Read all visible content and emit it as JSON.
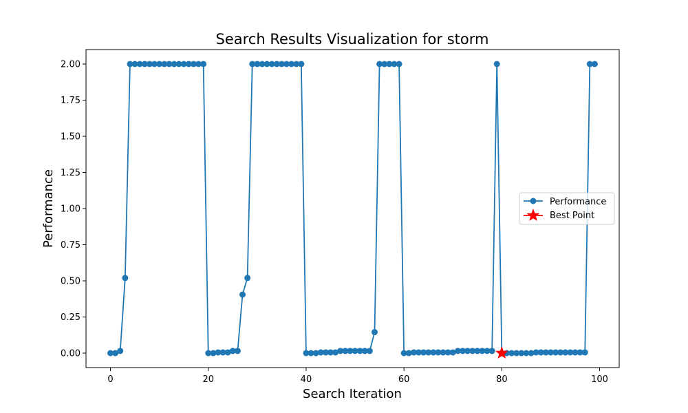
{
  "chart_data": {
    "type": "line",
    "title": "Search Results Visualization for storm",
    "xlabel": "Search Iteration",
    "ylabel": "Performance",
    "xlim": [
      -5,
      104
    ],
    "ylim": [
      -0.1,
      2.1
    ],
    "x_ticks": [
      0,
      20,
      40,
      60,
      80,
      100
    ],
    "y_ticks": [
      0.0,
      0.25,
      0.5,
      0.75,
      1.0,
      1.25,
      1.5,
      1.75,
      2.0
    ],
    "x_tick_labels": [
      "0",
      "20",
      "40",
      "60",
      "80",
      "100"
    ],
    "y_tick_labels": [
      "0.00",
      "0.25",
      "0.50",
      "0.75",
      "1.00",
      "1.25",
      "1.50",
      "1.75",
      "2.00"
    ],
    "grid": false,
    "legend_position": "center-right",
    "series": [
      {
        "name": "Performance",
        "color": "#1f77b4",
        "marker": "circle",
        "x": [
          0,
          1,
          2,
          3,
          4,
          5,
          6,
          7,
          8,
          9,
          10,
          11,
          12,
          13,
          14,
          15,
          16,
          17,
          18,
          19,
          20,
          21,
          22,
          23,
          24,
          25,
          26,
          27,
          28,
          29,
          30,
          31,
          32,
          33,
          34,
          35,
          36,
          37,
          38,
          39,
          40,
          41,
          42,
          43,
          44,
          45,
          46,
          47,
          48,
          49,
          50,
          51,
          52,
          53,
          54,
          55,
          56,
          57,
          58,
          59,
          60,
          61,
          62,
          63,
          64,
          65,
          66,
          67,
          68,
          69,
          70,
          71,
          72,
          73,
          74,
          75,
          76,
          77,
          78,
          79,
          80,
          81,
          82,
          83,
          84,
          85,
          86,
          87,
          88,
          89,
          90,
          91,
          92,
          93,
          94,
          95,
          96,
          97,
          98,
          99
        ],
        "y": [
          0.0,
          0.0,
          0.015,
          0.52,
          2.0,
          2.0,
          2.0,
          2.0,
          2.0,
          2.0,
          2.0,
          2.0,
          2.0,
          2.0,
          2.0,
          2.0,
          2.0,
          2.0,
          2.0,
          2.0,
          0.0,
          0.0,
          0.005,
          0.005,
          0.005,
          0.015,
          0.015,
          0.405,
          0.52,
          2.0,
          2.0,
          2.0,
          2.0,
          2.0,
          2.0,
          2.0,
          2.0,
          2.0,
          2.0,
          2.0,
          0.0,
          0.0,
          0.0,
          0.005,
          0.005,
          0.005,
          0.005,
          0.015,
          0.015,
          0.015,
          0.015,
          0.015,
          0.015,
          0.015,
          0.145,
          2.0,
          2.0,
          2.0,
          2.0,
          2.0,
          0.0,
          0.0,
          0.005,
          0.005,
          0.005,
          0.005,
          0.005,
          0.005,
          0.005,
          0.005,
          0.005,
          0.015,
          0.015,
          0.015,
          0.015,
          0.015,
          0.015,
          0.015,
          0.015,
          2.0,
          0.0,
          0.0,
          0.0,
          0.0,
          0.0,
          0.0,
          0.0,
          0.005,
          0.005,
          0.005,
          0.005,
          0.005,
          0.005,
          0.005,
          0.005,
          0.005,
          0.005,
          0.005,
          2.0,
          2.0
        ]
      },
      {
        "name": "Best Point",
        "color": "#ff0000",
        "marker": "star",
        "x": [
          80
        ],
        "y": [
          0.0
        ]
      }
    ]
  }
}
